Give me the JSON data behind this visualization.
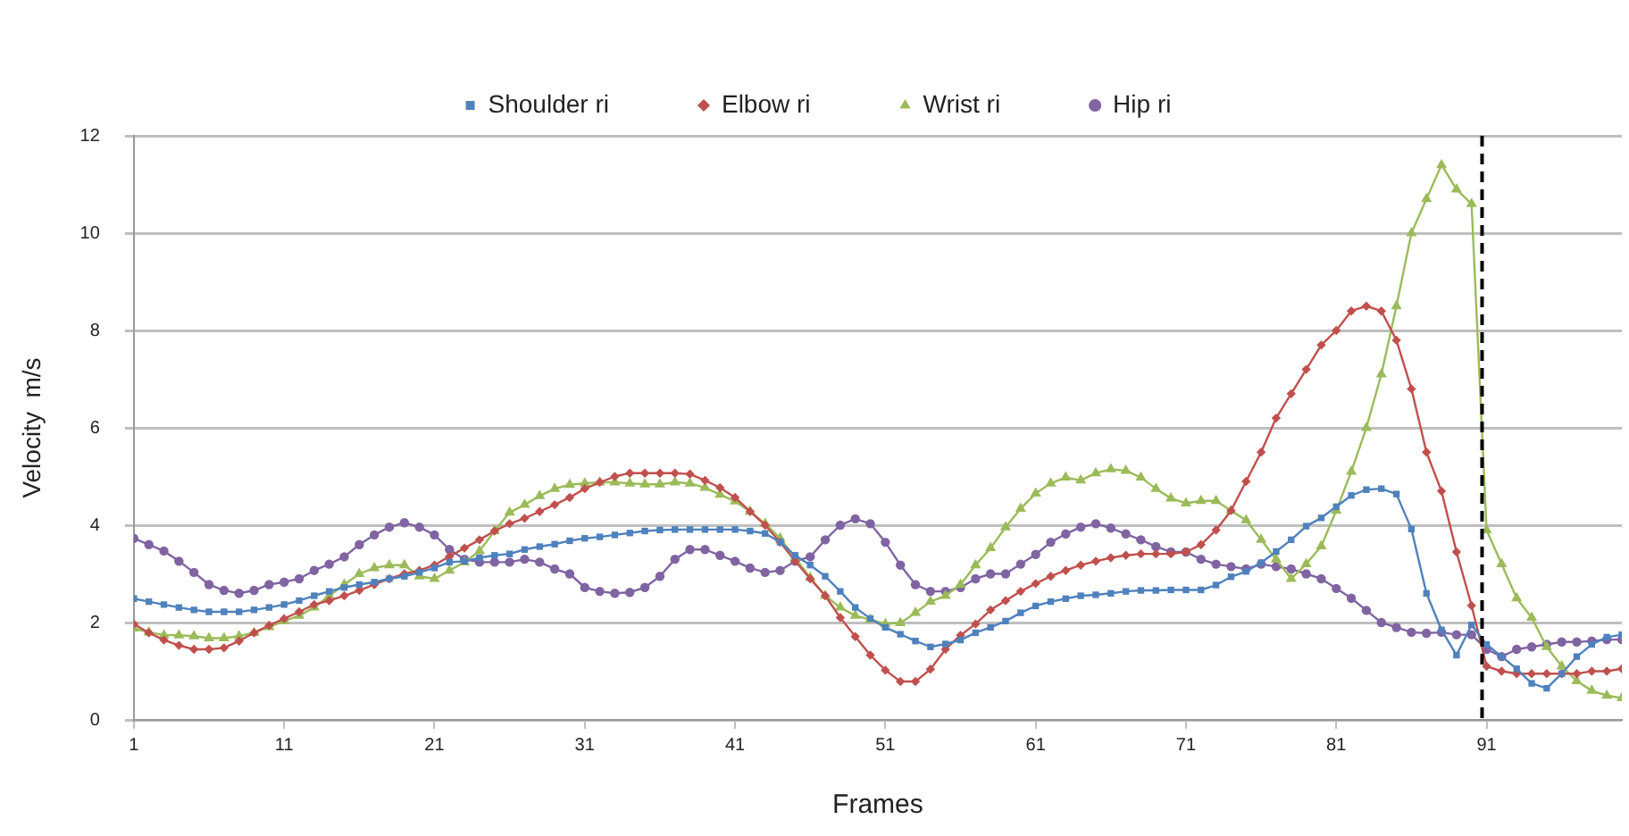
{
  "chart_data": {
    "type": "line",
    "xlabel": "Frames",
    "ylabel": "Velocity  m/s",
    "x": [
      1,
      2,
      3,
      4,
      5,
      6,
      7,
      8,
      9,
      10,
      11,
      12,
      13,
      14,
      15,
      16,
      17,
      18,
      19,
      20,
      21,
      22,
      23,
      24,
      25,
      26,
      27,
      28,
      29,
      30,
      31,
      32,
      33,
      34,
      35,
      36,
      37,
      38,
      39,
      40,
      41,
      42,
      43,
      44,
      45,
      46,
      47,
      48,
      49,
      50,
      51,
      52,
      53,
      54,
      55,
      56,
      57,
      58,
      59,
      60,
      61,
      62,
      63,
      64,
      65,
      66,
      67,
      68,
      69,
      70,
      71,
      72,
      73,
      74,
      75,
      76,
      77,
      78,
      79,
      80,
      81,
      82,
      83,
      84,
      85,
      86,
      87,
      88,
      89,
      90,
      91,
      92,
      93,
      94,
      95,
      96,
      97,
      98,
      99,
      100
    ],
    "xlim": [
      1,
      100
    ],
    "xticks": [
      1,
      11,
      21,
      31,
      41,
      51,
      61,
      71,
      81,
      91
    ],
    "ylim": [
      0,
      12
    ],
    "yticks": [
      0,
      2,
      4,
      6,
      8,
      10,
      12
    ],
    "grid": "y",
    "legend": "top",
    "line_style": "solid",
    "series": [
      {
        "name": "Shoulder ri",
        "color": "#4f81bd",
        "marker": "square",
        "values": [
          2.49,
          2.43,
          2.37,
          2.31,
          2.26,
          2.22,
          2.22,
          2.22,
          2.26,
          2.31,
          2.37,
          2.45,
          2.55,
          2.64,
          2.72,
          2.78,
          2.83,
          2.9,
          2.95,
          3.03,
          3.12,
          3.24,
          3.26,
          3.33,
          3.38,
          3.41,
          3.5,
          3.56,
          3.61,
          3.68,
          3.73,
          3.76,
          3.8,
          3.84,
          3.88,
          3.9,
          3.91,
          3.91,
          3.91,
          3.91,
          3.91,
          3.88,
          3.83,
          3.65,
          3.38,
          3.18,
          2.95,
          2.64,
          2.31,
          2.08,
          1.9,
          1.76,
          1.62,
          1.5,
          1.56,
          1.64,
          1.79,
          1.9,
          2.03,
          2.2,
          2.34,
          2.43,
          2.49,
          2.55,
          2.57,
          2.6,
          2.64,
          2.66,
          2.66,
          2.67,
          2.67,
          2.67,
          2.77,
          2.94,
          3.05,
          3.23,
          3.46,
          3.7,
          3.98,
          4.15,
          4.38,
          4.61,
          4.73,
          4.75,
          4.64,
          3.92,
          2.6,
          1.85,
          1.33,
          1.95,
          1.55,
          1.3,
          1.05,
          0.75,
          0.65,
          0.95,
          1.3,
          1.55,
          1.7,
          1.75
        ]
      },
      {
        "name": "Elbow ri",
        "color": "#c0504d",
        "marker": "diamond",
        "values": [
          1.97,
          1.79,
          1.64,
          1.53,
          1.45,
          1.45,
          1.48,
          1.62,
          1.79,
          1.94,
          2.08,
          2.22,
          2.37,
          2.45,
          2.55,
          2.66,
          2.78,
          2.9,
          3.0,
          3.07,
          3.18,
          3.36,
          3.53,
          3.7,
          3.88,
          4.03,
          4.14,
          4.28,
          4.42,
          4.57,
          4.75,
          4.88,
          5.0,
          5.07,
          5.07,
          5.07,
          5.07,
          5.05,
          4.92,
          4.77,
          4.57,
          4.28,
          4.0,
          3.65,
          3.26,
          2.9,
          2.55,
          2.1,
          1.71,
          1.33,
          1.02,
          0.79,
          0.79,
          1.04,
          1.45,
          1.74,
          1.97,
          2.26,
          2.45,
          2.64,
          2.8,
          2.95,
          3.07,
          3.18,
          3.26,
          3.33,
          3.38,
          3.41,
          3.41,
          3.41,
          3.45,
          3.6,
          3.9,
          4.3,
          4.9,
          5.5,
          6.2,
          6.7,
          7.2,
          7.7,
          8.0,
          8.4,
          8.5,
          8.4,
          7.8,
          6.8,
          5.5,
          4.7,
          3.45,
          2.35,
          1.1,
          1.0,
          0.95,
          0.95,
          0.95,
          0.95,
          0.95,
          1.0,
          1.0,
          1.05
        ]
      },
      {
        "name": "Wrist ri",
        "color": "#9bbb59",
        "marker": "triangle",
        "values": [
          1.88,
          1.8,
          1.74,
          1.74,
          1.72,
          1.68,
          1.68,
          1.72,
          1.79,
          1.91,
          2.03,
          2.14,
          2.31,
          2.55,
          2.78,
          3.0,
          3.12,
          3.18,
          3.18,
          2.95,
          2.9,
          3.07,
          3.24,
          3.47,
          3.88,
          4.26,
          4.42,
          4.6,
          4.75,
          4.83,
          4.86,
          4.88,
          4.88,
          4.86,
          4.84,
          4.84,
          4.88,
          4.86,
          4.77,
          4.63,
          4.49,
          4.28,
          4.03,
          3.73,
          3.33,
          2.92,
          2.55,
          2.31,
          2.14,
          2.06,
          1.97,
          1.99,
          2.2,
          2.43,
          2.55,
          2.78,
          3.18,
          3.53,
          3.96,
          4.34,
          4.65,
          4.86,
          4.98,
          4.92,
          5.07,
          5.15,
          5.12,
          4.98,
          4.75,
          4.55,
          4.45,
          4.5,
          4.5,
          4.3,
          4.1,
          3.7,
          3.3,
          2.9,
          3.2,
          3.57,
          4.3,
          5.1,
          6.0,
          7.1,
          8.5,
          10.0,
          10.7,
          11.4,
          10.9,
          10.6,
          3.9,
          3.2,
          2.5,
          2.1,
          1.5,
          1.1,
          0.8,
          0.6,
          0.5,
          0.45
        ]
      },
      {
        "name": "Hip ri",
        "color": "#8064a2",
        "marker": "circle",
        "values": [
          3.73,
          3.6,
          3.47,
          3.26,
          3.03,
          2.78,
          2.66,
          2.6,
          2.66,
          2.78,
          2.83,
          2.9,
          3.07,
          3.2,
          3.35,
          3.6,
          3.8,
          3.96,
          4.05,
          3.96,
          3.8,
          3.5,
          3.3,
          3.24,
          3.24,
          3.24,
          3.3,
          3.24,
          3.1,
          3.0,
          2.72,
          2.64,
          2.6,
          2.62,
          2.72,
          2.95,
          3.3,
          3.5,
          3.5,
          3.38,
          3.26,
          3.12,
          3.03,
          3.07,
          3.26,
          3.35,
          3.7,
          4.0,
          4.13,
          4.03,
          3.65,
          3.18,
          2.78,
          2.64,
          2.64,
          2.72,
          2.9,
          3.0,
          3.0,
          3.2,
          3.4,
          3.65,
          3.82,
          3.96,
          4.03,
          3.94,
          3.82,
          3.7,
          3.56,
          3.45,
          3.45,
          3.3,
          3.2,
          3.15,
          3.1,
          3.2,
          3.15,
          3.1,
          3.0,
          2.9,
          2.7,
          2.5,
          2.25,
          2.0,
          1.9,
          1.8,
          1.78,
          1.8,
          1.75,
          1.75,
          1.45,
          1.3,
          1.45,
          1.5,
          1.55,
          1.6,
          1.6,
          1.62,
          1.65,
          1.65
        ]
      }
    ],
    "ref_lines": [
      {
        "axis": "x",
        "value": 90.7,
        "color": "#000000",
        "line_style": "dashed"
      }
    ]
  }
}
